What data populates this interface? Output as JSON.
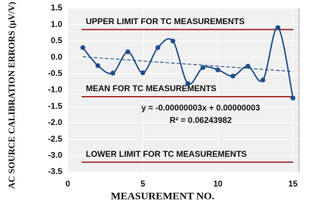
{
  "chart_data": {
    "type": "line",
    "y_label": "AC SOURCE CALIBRATION ERRORS (µV/V)",
    "x_label": "MEASUREMENT NO.",
    "x": [
      1,
      2,
      3,
      4,
      5,
      6,
      7,
      8,
      9,
      10,
      11,
      12,
      13,
      14,
      15
    ],
    "series": [
      {
        "color": "#1f4e8c",
        "values": [
          0.3,
          -0.25,
          -0.48,
          0.17,
          -0.47,
          0.3,
          0.5,
          -0.8,
          -0.31,
          -0.38,
          -0.57,
          -0.27,
          -0.69,
          0.91,
          -1.24
        ]
      }
    ],
    "trend": {
      "x": [
        1,
        15
      ],
      "values": [
        0.02,
        -0.43
      ],
      "color": "#1f4e8c",
      "equation": "y = -0.00000003x + 0.00000003",
      "r_squared": "R² = 0.06243982"
    },
    "reference_lines": [
      {
        "label": "UPPER LIMIT FOR TC MEASUREMENTS",
        "value": 0.85,
        "color": "#a83232"
      },
      {
        "label": "MEAN FOR TC MEASUREMENTS",
        "value": -1.2,
        "color": "#a83232"
      },
      {
        "label": "LOWER LIMIT FOR TC MEASUREMENTS",
        "value": -3.2,
        "color": "#a83232"
      }
    ],
    "xlim": [
      0,
      15.4
    ],
    "xticks": [
      0,
      5,
      10,
      15
    ],
    "ylim": [
      -3.5,
      1.5
    ],
    "yticks": [
      1.5,
      {
        "value": 1,
        "label": "1.0"
      },
      0.5,
      {
        "value": 0,
        "label": "0.0"
      },
      -0.5,
      {
        "value": -1,
        "label": "-1.0"
      },
      -1.5,
      {
        "value": -2,
        "label": "-2.0"
      },
      -2.5,
      {
        "value": -3,
        "label": "-3.0"
      },
      -3.5
    ],
    "grid": true
  }
}
